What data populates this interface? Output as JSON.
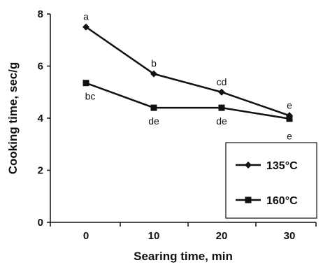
{
  "chart_data": {
    "type": "line",
    "title": "",
    "xlabel": "Searing time, min",
    "ylabel": "Cooking time, sec/g",
    "x": [
      0,
      10,
      20,
      30
    ],
    "xlim": [
      0,
      30
    ],
    "ylim": [
      0,
      8
    ],
    "yticks": [
      0,
      2,
      4,
      6,
      8
    ],
    "xticks": [
      0,
      10,
      20,
      30
    ],
    "grid": false,
    "legend_position": "bottom-right",
    "series": [
      {
        "name": "135°C",
        "marker": "diamond",
        "color": "#111111",
        "values": [
          7.5,
          5.7,
          5.0,
          4.1
        ],
        "labels": [
          "a",
          "b",
          "cd",
          "e"
        ]
      },
      {
        "name": "160°C",
        "marker": "square",
        "color": "#111111",
        "values": [
          5.35,
          4.4,
          4.4,
          3.98
        ],
        "labels": [
          "bc",
          "de",
          "de",
          "e"
        ]
      }
    ]
  }
}
